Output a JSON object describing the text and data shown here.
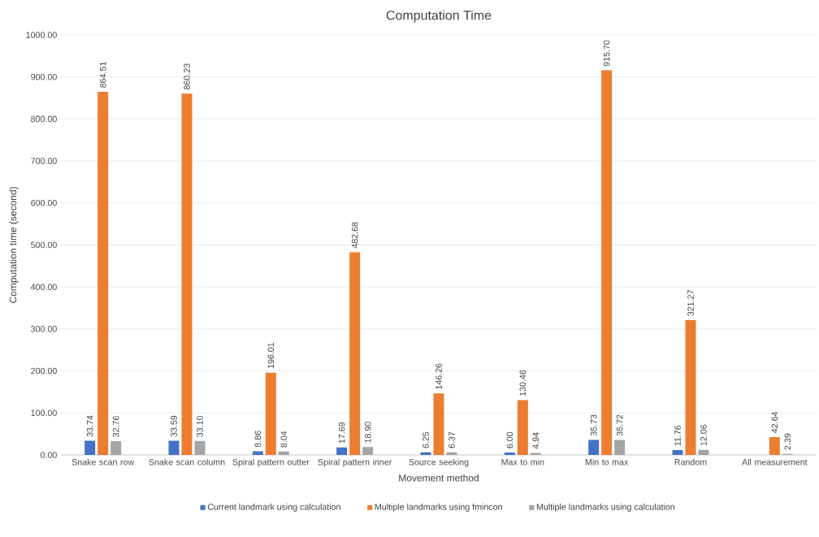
{
  "chart_data": {
    "type": "bar",
    "title": "Computation Time",
    "xlabel": "Movement method",
    "ylabel": "Computation time (second)",
    "categories": [
      "Snake scan row",
      "Snake scan column",
      "Spiral pattern outter",
      "Spiral pattern inner",
      "Source seeking",
      "Max to min",
      "Min to max",
      "Random",
      "All measurement"
    ],
    "series": [
      {
        "name": "Current landmark using calculation",
        "color": "#4472c4",
        "values": [
          33.74,
          33.59,
          8.86,
          17.69,
          6.25,
          6.0,
          35.73,
          11.76,
          null
        ],
        "value_labels": [
          "33.74",
          "33.59",
          "8.86",
          "17.69",
          "6.25",
          "6.00",
          "35.73",
          "11.76",
          null
        ]
      },
      {
        "name": "Multiple landmarks using fmincon",
        "color": "#ed7d31",
        "values": [
          864.51,
          860.23,
          196.01,
          482.68,
          146.26,
          130.46,
          915.7,
          321.27,
          42.64
        ],
        "value_labels": [
          "864.51",
          "860.23",
          "196.01",
          "482.68",
          "146.26",
          "130.46",
          "915.70",
          "321.27",
          "42.64"
        ]
      },
      {
        "name": "Multiple landmarks using calculation",
        "color": "#a5a5a5",
        "values": [
          32.76,
          33.1,
          8.04,
          18.9,
          6.37,
          4.94,
          35.72,
          12.06,
          2.39
        ],
        "value_labels": [
          "32.76",
          "33.10",
          "8.04",
          "18.90",
          "6.37",
          "4.94",
          "35.72",
          "12.06",
          "2.39"
        ]
      }
    ],
    "ylim": [
      0,
      1000
    ],
    "yticks": [
      {
        "value": 0,
        "label": "0.00"
      },
      {
        "value": 100,
        "label": "100.00"
      },
      {
        "value": 200,
        "label": "200.00"
      },
      {
        "value": 300,
        "label": "300.00"
      },
      {
        "value": 400,
        "label": "400.00"
      },
      {
        "value": 500,
        "label": "500.00"
      },
      {
        "value": 600,
        "label": "600.00"
      },
      {
        "value": 700,
        "label": "700.00"
      },
      {
        "value": 800,
        "label": "800.00"
      },
      {
        "value": 900,
        "label": "900.00"
      },
      {
        "value": 1000,
        "label": "1000.00"
      }
    ],
    "grid": "y",
    "legend": "bottom"
  }
}
